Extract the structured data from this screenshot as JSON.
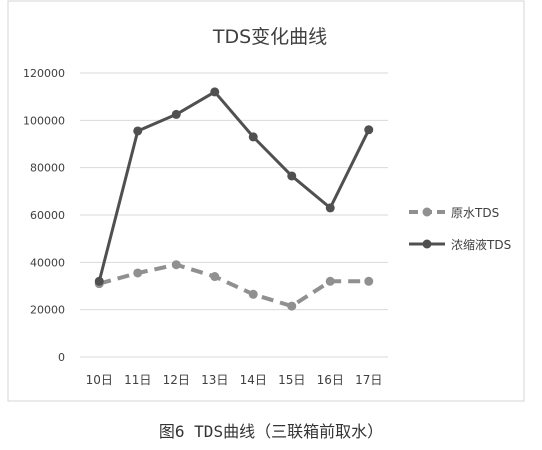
{
  "caption": "图6 TDS曲线（三联箱前取水）",
  "chart_data": {
    "type": "line",
    "title": "TDS变化曲线",
    "xlabel": "",
    "ylabel": "",
    "categories": [
      "10日",
      "11日",
      "12日",
      "13日",
      "14日",
      "15日",
      "16日",
      "17日"
    ],
    "ylim": [
      0,
      120000
    ],
    "yticks": [
      0,
      20000,
      40000,
      60000,
      80000,
      100000,
      120000
    ],
    "ytick_labels": [
      "0",
      "20000",
      "40000",
      "60000",
      "80000",
      "100000",
      "120000"
    ],
    "grid": true,
    "legend_position": "right",
    "series": [
      {
        "name": "原水TDS",
        "values": [
          31000,
          35500,
          39000,
          34000,
          26500,
          21500,
          32000,
          32000
        ],
        "color": "#909090",
        "style": "dashed"
      },
      {
        "name": "浓缩液TDS",
        "values": [
          32000,
          95500,
          102500,
          112000,
          93000,
          76500,
          63000,
          96000
        ],
        "color": "#505050",
        "style": "solid"
      }
    ]
  }
}
